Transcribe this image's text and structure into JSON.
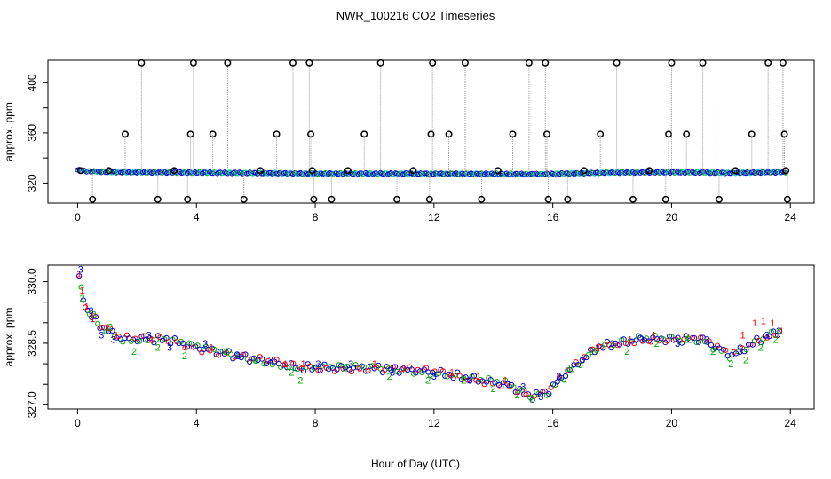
{
  "chart_data": [
    {
      "type": "scatter",
      "title": "NWR_100216  CO2 Timeseries",
      "xlabel": "",
      "ylabel": "approx. ppm",
      "xlim": [
        -1,
        24.8
      ],
      "ylim": [
        304,
        418
      ],
      "xticks": [
        "0",
        "4",
        "8",
        "12",
        "16",
        "20",
        "24"
      ],
      "yticks": [
        "320",
        "360",
        "400"
      ],
      "xtick_values": [
        0,
        4,
        8,
        12,
        16,
        20,
        24
      ],
      "ytick_values": [
        320,
        340,
        360,
        380,
        400
      ],
      "ytick_labels_shown": [
        320,
        360,
        400
      ],
      "baseline": [
        [
          0,
          330.5
        ],
        [
          0.3,
          329.5
        ],
        [
          1,
          328.8
        ],
        [
          2,
          328.6
        ],
        [
          4,
          328.4
        ],
        [
          6,
          328.0
        ],
        [
          8,
          327.6
        ],
        [
          10,
          327.6
        ],
        [
          12,
          327.5
        ],
        [
          14,
          327.4
        ],
        [
          15.5,
          327.1
        ],
        [
          16,
          327.4
        ],
        [
          18,
          328.4
        ],
        [
          20,
          328.6
        ],
        [
          21,
          328.5
        ],
        [
          22,
          328.2
        ],
        [
          23,
          328.5
        ],
        [
          23.8,
          328.7
        ]
      ],
      "spikes": [
        {
          "x": 0.1,
          "y": 330
        },
        {
          "x": 0.5,
          "y": 307
        },
        {
          "x": 1.05,
          "y": 330
        },
        {
          "x": 1.6,
          "y": 359
        },
        {
          "x": 2.15,
          "y": 416
        },
        {
          "x": 2.7,
          "y": 307
        },
        {
          "x": 3.25,
          "y": 330
        },
        {
          "x": 3.7,
          "y": 307
        },
        {
          "x": 3.8,
          "y": 359
        },
        {
          "x": 3.9,
          "y": 416
        },
        {
          "x": 4.55,
          "y": 359
        },
        {
          "x": 5.05,
          "y": 416
        },
        {
          "x": 5.6,
          "y": 307
        },
        {
          "x": 6.15,
          "y": 330
        },
        {
          "x": 6.7,
          "y": 359
        },
        {
          "x": 7.25,
          "y": 416
        },
        {
          "x": 7.8,
          "y": 416
        },
        {
          "x": 7.85,
          "y": 359
        },
        {
          "x": 7.9,
          "y": 330
        },
        {
          "x": 7.95,
          "y": 307
        },
        {
          "x": 8.55,
          "y": 307
        },
        {
          "x": 9.1,
          "y": 330
        },
        {
          "x": 9.65,
          "y": 359
        },
        {
          "x": 10.2,
          "y": 416
        },
        {
          "x": 10.75,
          "y": 307
        },
        {
          "x": 11.3,
          "y": 330
        },
        {
          "x": 11.85,
          "y": 307
        },
        {
          "x": 11.9,
          "y": 359
        },
        {
          "x": 11.95,
          "y": 416
        },
        {
          "x": 12.5,
          "y": 359
        },
        {
          "x": 13.05,
          "y": 416
        },
        {
          "x": 13.6,
          "y": 307
        },
        {
          "x": 14.15,
          "y": 330
        },
        {
          "x": 14.65,
          "y": 359
        },
        {
          "x": 15.2,
          "y": 416
        },
        {
          "x": 15.75,
          "y": 416
        },
        {
          "x": 15.8,
          "y": 359
        },
        {
          "x": 15.85,
          "y": 307
        },
        {
          "x": 16.5,
          "y": 307
        },
        {
          "x": 17.05,
          "y": 330
        },
        {
          "x": 17.6,
          "y": 359
        },
        {
          "x": 18.15,
          "y": 416
        },
        {
          "x": 18.7,
          "y": 307
        },
        {
          "x": 19.25,
          "y": 330
        },
        {
          "x": 19.8,
          "y": 307
        },
        {
          "x": 19.9,
          "y": 359
        },
        {
          "x": 20.0,
          "y": 416
        },
        {
          "x": 20.5,
          "y": 359
        },
        {
          "x": 21.05,
          "y": 416
        },
        {
          "x": 21.6,
          "y": 307
        },
        {
          "x": 22.15,
          "y": 330
        },
        {
          "x": 22.7,
          "y": 359
        },
        {
          "x": 23.25,
          "y": 416
        },
        {
          "x": 23.75,
          "y": 416
        },
        {
          "x": 23.8,
          "y": 359
        },
        {
          "x": 23.85,
          "y": 330
        },
        {
          "x": 23.9,
          "y": 307
        }
      ],
      "faint_spikes": [
        {
          "x": 21.5,
          "y": 384
        }
      ]
    },
    {
      "type": "scatter",
      "xlabel": "Hour of Day (UTC)",
      "ylabel": "approx. ppm",
      "xlim": [
        -1,
        24.8
      ],
      "ylim": [
        326.9,
        330.4
      ],
      "xticks": [
        "0",
        "4",
        "8",
        "12",
        "16",
        "20",
        "24"
      ],
      "xtick_values": [
        0,
        4,
        8,
        12,
        16,
        20,
        24
      ],
      "yticks": [
        "327.0",
        "328.5",
        "330.0"
      ],
      "ytick_values": [
        327.0,
        327.5,
        328.0,
        328.5,
        329.0,
        329.5,
        330.0
      ],
      "ytick_labels_shown": [
        "327.0",
        "328.5",
        "330.0"
      ],
      "series": [
        {
          "name": "1",
          "color": "#ff0000",
          "points": [
            [
              0.05,
              330.2
            ],
            [
              0.15,
              329.8
            ],
            [
              0.3,
              329.4
            ],
            [
              0.5,
              329.1
            ],
            [
              1.0,
              328.9
            ],
            [
              1.3,
              328.7
            ],
            [
              2.5,
              328.6
            ],
            [
              4.5,
              328.4
            ],
            [
              5.5,
              328.3
            ],
            [
              7.0,
              328.0
            ],
            [
              7.6,
              328.0
            ],
            [
              9.5,
              327.9
            ],
            [
              10.0,
              328.0
            ],
            [
              11.0,
              327.9
            ],
            [
              12.6,
              327.8
            ],
            [
              13.5,
              327.7
            ],
            [
              14.4,
              327.6
            ],
            [
              15.1,
              327.3
            ],
            [
              17.5,
              328.4
            ],
            [
              18.6,
              328.6
            ],
            [
              19.4,
              328.7
            ],
            [
              22.4,
              328.7
            ],
            [
              22.8,
              329.0
            ],
            [
              23.1,
              329.05
            ],
            [
              23.4,
              329.0
            ],
            [
              23.7,
              328.8
            ]
          ]
        },
        {
          "name": "2",
          "color": "#00aa00",
          "points": [
            [
              0.15,
              329.6
            ],
            [
              0.55,
              329.2
            ],
            [
              1.1,
              328.9
            ],
            [
              1.9,
              328.3
            ],
            [
              2.7,
              328.4
            ],
            [
              3.6,
              328.2
            ],
            [
              5.0,
              328.3
            ],
            [
              6.0,
              328.1
            ],
            [
              7.2,
              327.8
            ],
            [
              7.5,
              327.6
            ],
            [
              9.0,
              327.9
            ],
            [
              10.5,
              327.7
            ],
            [
              11.8,
              327.6
            ],
            [
              13.0,
              327.6
            ],
            [
              14.0,
              327.4
            ],
            [
              14.8,
              327.25
            ],
            [
              15.3,
              327.15
            ],
            [
              16.5,
              327.9
            ],
            [
              17.3,
              328.3
            ],
            [
              18.5,
              328.3
            ],
            [
              19.5,
              328.5
            ],
            [
              20.5,
              328.6
            ],
            [
              21.4,
              328.3
            ],
            [
              22.0,
              328.0
            ],
            [
              22.5,
              328.1
            ],
            [
              23.0,
              328.4
            ],
            [
              23.5,
              328.6
            ]
          ]
        },
        {
          "name": "3",
          "color": "#0000cc",
          "points": [
            [
              0.1,
              330.3
            ],
            [
              0.45,
              329.3
            ],
            [
              0.8,
              328.7
            ],
            [
              1.2,
              328.6
            ],
            [
              2.4,
              328.7
            ],
            [
              3.1,
              328.4
            ],
            [
              4.3,
              328.5
            ],
            [
              5.4,
              328.2
            ],
            [
              6.5,
              328.1
            ],
            [
              8.1,
              328.0
            ],
            [
              9.2,
              328.0
            ],
            [
              10.6,
              327.8
            ],
            [
              12.0,
              327.7
            ],
            [
              13.2,
              327.6
            ],
            [
              14.5,
              327.5
            ],
            [
              15.0,
              327.45
            ],
            [
              15.6,
              327.2
            ],
            [
              16.2,
              327.7
            ],
            [
              17.0,
              328.1
            ],
            [
              18.0,
              328.5
            ],
            [
              19.0,
              328.6
            ],
            [
              20.2,
              328.5
            ],
            [
              21.2,
              328.6
            ],
            [
              22.3,
              328.3
            ],
            [
              23.2,
              328.7
            ],
            [
              23.6,
              328.8
            ]
          ]
        }
      ],
      "trend": [
        [
          0,
          330.2
        ],
        [
          0.3,
          329.3
        ],
        [
          0.8,
          328.9
        ],
        [
          1.5,
          328.6
        ],
        [
          3,
          328.6
        ],
        [
          4,
          328.4
        ],
        [
          6,
          328.1
        ],
        [
          7.5,
          327.9
        ],
        [
          9,
          327.9
        ],
        [
          10,
          327.9
        ],
        [
          12,
          327.8
        ],
        [
          13.5,
          327.6
        ],
        [
          14.5,
          327.5
        ],
        [
          15.2,
          327.2
        ],
        [
          15.8,
          327.3
        ],
        [
          16.5,
          327.8
        ],
        [
          17.5,
          328.4
        ],
        [
          19,
          328.6
        ],
        [
          20,
          328.6
        ],
        [
          21,
          328.6
        ],
        [
          22,
          328.2
        ],
        [
          23,
          328.6
        ],
        [
          23.7,
          328.8
        ]
      ]
    }
  ]
}
